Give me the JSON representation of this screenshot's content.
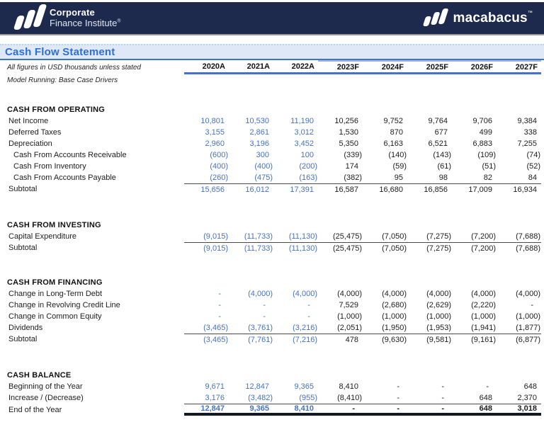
{
  "brand": {
    "cfi": {
      "icon": "three-bars-logo",
      "line1": "Corporate",
      "line2": "Finance Institute",
      "reg": "®"
    },
    "macabacus": {
      "icon": "three-bars-logo",
      "name": "macabacus",
      "tm": "™"
    }
  },
  "title": "Cash Flow Statement",
  "notes": {
    "line1": "All figures in USD thousands unless stated",
    "line2": "Model Running: Base Case Drivers"
  },
  "columns": [
    {
      "label": "2020A",
      "type": "actual"
    },
    {
      "label": "2021A",
      "type": "actual"
    },
    {
      "label": "2022A",
      "type": "actual"
    },
    {
      "label": "2023F",
      "type": "forecast"
    },
    {
      "label": "2024F",
      "type": "forecast"
    },
    {
      "label": "2025F",
      "type": "forecast"
    },
    {
      "label": "2026F",
      "type": "forecast"
    },
    {
      "label": "2027F",
      "type": "forecast"
    }
  ],
  "colors": {
    "brand_navy": "#1E2A4D",
    "accent_blue": "#4472C4",
    "title_blue": "#2E6FD6",
    "title_band_bg": "#DEE8F7",
    "forecast_overline": "#9DB6DF",
    "text_dark": "#1C1C1C",
    "subtotal_rule": "#4A4A4A",
    "grand_total_rule": "#121826",
    "bar_divider_gray": "#969696"
  },
  "sections": [
    {
      "name": "CASH FROM OPERATING",
      "rows": [
        {
          "label": "Net Income",
          "indent": 1,
          "values": [
            "10,801",
            "10,530",
            "11,190",
            "10,256",
            "9,752",
            "9,764",
            "9,706",
            "9,384"
          ]
        },
        {
          "label": "Deferred Taxes",
          "indent": 1,
          "values": [
            "3,155",
            "2,861",
            "3,012",
            "1,530",
            "870",
            "677",
            "499",
            "338"
          ]
        },
        {
          "label": "Depreciation",
          "indent": 1,
          "values": [
            "2,960",
            "3,196",
            "3,452",
            "5,350",
            "6,163",
            "6,521",
            "6,883",
            "7,255"
          ]
        },
        {
          "label": "Cash From Accounts Receivable",
          "indent": 2,
          "values": [
            "(600)",
            "300",
            "100",
            "(339)",
            "(140)",
            "(143)",
            "(109)",
            "(74)"
          ]
        },
        {
          "label": "Cash From Inventory",
          "indent": 2,
          "values": [
            "(400)",
            "(400)",
            "(200)",
            "174",
            "(59)",
            "(61)",
            "(51)",
            "(52)"
          ]
        },
        {
          "label": "Cash From Accounts Payable",
          "indent": 2,
          "values": [
            "(260)",
            "(475)",
            "(163)",
            "(382)",
            "95",
            "98",
            "82",
            "84"
          ]
        },
        {
          "label": "Subtotal",
          "indent": 1,
          "rule_above": true,
          "values": [
            "15,656",
            "16,012",
            "17,391",
            "16,587",
            "16,680",
            "16,856",
            "17,009",
            "16,934"
          ]
        }
      ]
    },
    {
      "name": "CASH FROM INVESTING",
      "rows": [
        {
          "label": "Capital Expenditure",
          "indent": 1,
          "values": [
            "(9,015)",
            "(11,733)",
            "(11,130)",
            "(25,475)",
            "(7,050)",
            "(7,275)",
            "(7,200)",
            "(7,688)"
          ]
        },
        {
          "label": "Subtotal",
          "indent": 1,
          "rule_above": true,
          "values": [
            "(9,015)",
            "(11,733)",
            "(11,130)",
            "(25,475)",
            "(7,050)",
            "(7,275)",
            "(7,200)",
            "(7,688)"
          ]
        }
      ]
    },
    {
      "name": "CASH FROM FINANCING",
      "rows": [
        {
          "label": "Change in Long-Term Debt",
          "indent": 1,
          "values": [
            "-",
            "(4,000)",
            "(4,000)",
            "(4,000)",
            "(4,000)",
            "(4,000)",
            "(4,000)",
            "(4,000)"
          ]
        },
        {
          "label": "Change in Revolving Credit Line",
          "indent": 1,
          "values": [
            "-",
            "-",
            "-",
            "7,529",
            "(2,680)",
            "(2,629)",
            "(2,220)",
            "-"
          ]
        },
        {
          "label": "Change in Common Equity",
          "indent": 1,
          "values": [
            "-",
            "-",
            "-",
            "(1,000)",
            "(1,000)",
            "(1,000)",
            "(1,000)",
            "(1,000)"
          ]
        },
        {
          "label": "Dividends",
          "indent": 1,
          "values": [
            "(3,465)",
            "(3,761)",
            "(3,216)",
            "(2,051)",
            "(1,950)",
            "(1,953)",
            "(1,941)",
            "(1,877)"
          ]
        },
        {
          "label": "Subtotal",
          "indent": 1,
          "rule_above": true,
          "values": [
            "(3,465)",
            "(7,761)",
            "(7,216)",
            "478",
            "(9,630)",
            "(9,581)",
            "(9,161)",
            "(6,877)"
          ]
        }
      ]
    },
    {
      "name": "CASH BALANCE",
      "rows": [
        {
          "label": "Beginning of the Year",
          "indent": 1,
          "values": [
            "9,671",
            "12,847",
            "9,365",
            "8,410",
            "-",
            "-",
            "-",
            "648"
          ]
        },
        {
          "label": "Increase / (Decrease)",
          "indent": 1,
          "values": [
            "3,176",
            "(3,482)",
            "(955)",
            "(8,410)",
            "-",
            "-",
            "648",
            "2,370"
          ]
        },
        {
          "label": "End of the Year",
          "indent": 1,
          "rule_above": true,
          "total": true,
          "values": [
            "12,847",
            "9,365",
            "8,410",
            "-",
            "-",
            "-",
            "648",
            "3,018"
          ]
        }
      ]
    }
  ]
}
